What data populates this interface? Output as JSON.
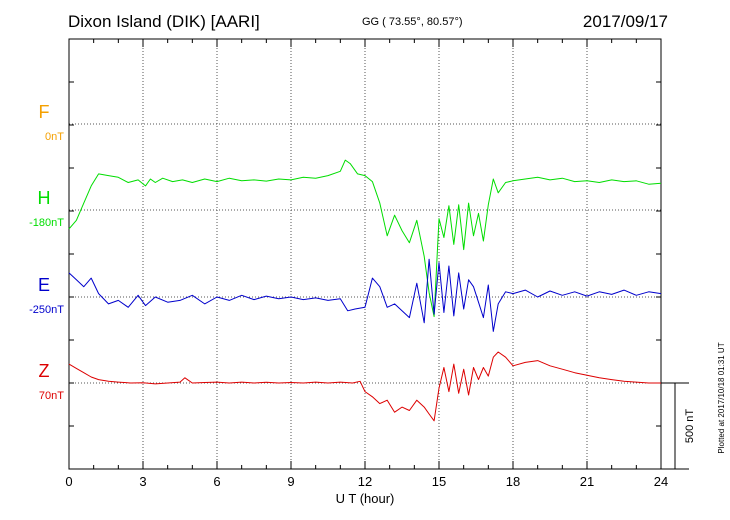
{
  "header": {
    "station": "Dixon Island (DIK)  [AARI]",
    "coords": "GG ( 73.55°,  80.57°)",
    "date": "2017/09/17"
  },
  "plotted_note": "Plotted at 2017/10/18 01:31  UT",
  "colors": {
    "F": "#f5a000",
    "H": "#00dd00",
    "E": "#0000cc",
    "Z": "#dd0000"
  },
  "chart_data": {
    "type": "line",
    "xlabel": "U T (hour)",
    "xlim": [
      0,
      24
    ],
    "xticks": [
      "0",
      "3",
      "6",
      "9",
      "12",
      "15",
      "18",
      "21",
      "24"
    ],
    "scale_bar": "500 nT",
    "series": [
      {
        "name": "F",
        "baseline_label": "0nT",
        "x": [],
        "y": []
      },
      {
        "name": "H",
        "baseline_label": "-180nT",
        "x": [
          0,
          0.3,
          0.6,
          0.9,
          1.2,
          1.6,
          2,
          2.4,
          2.8,
          3.1,
          3.3,
          3.5,
          3.8,
          4.2,
          4.6,
          5,
          5.5,
          6,
          6.5,
          7,
          7.5,
          8,
          8.5,
          9,
          9.5,
          10,
          10.5,
          11,
          11.2,
          11.4,
          11.7,
          12,
          12.3,
          12.6,
          12.9,
          13.2,
          13.5,
          13.8,
          14.1,
          14.4,
          14.6,
          14.8,
          15,
          15.2,
          15.4,
          15.6,
          15.8,
          16,
          16.2,
          16.4,
          16.6,
          16.8,
          17,
          17.2,
          17.4,
          17.7,
          18,
          18.5,
          19,
          19.5,
          20,
          20.5,
          21,
          21.5,
          22,
          22.5,
          23,
          23.5,
          24
        ],
        "y": [
          -110,
          -60,
          40,
          140,
          210,
          200,
          190,
          160,
          175,
          140,
          180,
          160,
          185,
          165,
          175,
          160,
          180,
          165,
          185,
          170,
          175,
          168,
          180,
          175,
          190,
          185,
          200,
          225,
          290,
          270,
          210,
          200,
          165,
          40,
          -150,
          -30,
          -120,
          -190,
          -60,
          -270,
          -480,
          -620,
          -50,
          -160,
          25,
          -200,
          30,
          -230,
          40,
          -150,
          -20,
          -180,
          30,
          180,
          100,
          160,
          170,
          180,
          190,
          175,
          185,
          165,
          170,
          160,
          175,
          165,
          170,
          150,
          155
        ]
      },
      {
        "name": "E",
        "baseline_label": "-250nT",
        "x": [
          0,
          0.3,
          0.6,
          0.9,
          1.2,
          1.6,
          2,
          2.4,
          2.8,
          3.1,
          3.5,
          4,
          4.5,
          5,
          5.5,
          6,
          6.5,
          7,
          7.5,
          8,
          8.5,
          9,
          9.5,
          10,
          10.5,
          11,
          11.3,
          11.6,
          12,
          12.3,
          12.6,
          12.9,
          13.2,
          13.5,
          13.8,
          14.1,
          14.4,
          14.6,
          14.8,
          15,
          15.2,
          15.4,
          15.6,
          15.8,
          16,
          16.2,
          16.4,
          16.6,
          16.8,
          17,
          17.2,
          17.4,
          17.7,
          18,
          18.5,
          19,
          19.5,
          20,
          20.5,
          21,
          21.5,
          22,
          22.5,
          23,
          23.5,
          24
        ],
        "y": [
          140,
          100,
          60,
          110,
          20,
          -40,
          -20,
          -60,
          10,
          -50,
          0,
          -30,
          -20,
          10,
          -40,
          0,
          -20,
          10,
          -15,
          5,
          -10,
          0,
          -15,
          -5,
          -20,
          -10,
          -80,
          -70,
          -60,
          110,
          60,
          -60,
          -40,
          -80,
          -120,
          80,
          -150,
          220,
          -100,
          200,
          -90,
          180,
          -110,
          140,
          -70,
          100,
          60,
          -30,
          -120,
          70,
          -200,
          -40,
          30,
          20,
          40,
          0,
          35,
          10,
          30,
          5,
          30,
          15,
          40,
          10,
          30,
          20
        ]
      },
      {
        "name": "Z",
        "baseline_label": "70nT",
        "x": [
          0,
          0.3,
          0.6,
          0.9,
          1.2,
          1.6,
          2,
          2.5,
          3,
          3.5,
          4,
          4.5,
          4.7,
          5,
          5.5,
          6,
          6.5,
          7,
          7.5,
          8,
          8.5,
          9,
          9.5,
          10,
          10.5,
          11,
          11.5,
          11.8,
          12,
          12.3,
          12.6,
          12.9,
          13.2,
          13.5,
          13.8,
          14.1,
          14.4,
          14.6,
          14.8,
          15,
          15.2,
          15.4,
          15.6,
          15.8,
          16,
          16.2,
          16.4,
          16.6,
          16.8,
          17,
          17.2,
          17.4,
          17.7,
          18,
          18.5,
          19,
          19.5,
          20,
          20.5,
          21,
          21.5,
          22,
          22.5,
          23,
          23.5,
          24
        ],
        "y": [
          110,
          85,
          60,
          35,
          20,
          10,
          5,
          0,
          2,
          -5,
          0,
          5,
          30,
          0,
          3,
          5,
          0,
          5,
          0,
          4,
          0,
          3,
          0,
          5,
          0,
          5,
          0,
          10,
          -50,
          -80,
          -120,
          -100,
          -170,
          -140,
          -160,
          -100,
          -140,
          -180,
          -220,
          -30,
          90,
          -50,
          110,
          -60,
          80,
          -70,
          90,
          20,
          90,
          40,
          150,
          180,
          150,
          100,
          120,
          130,
          100,
          80,
          60,
          45,
          30,
          20,
          10,
          5,
          0,
          0
        ]
      }
    ]
  }
}
